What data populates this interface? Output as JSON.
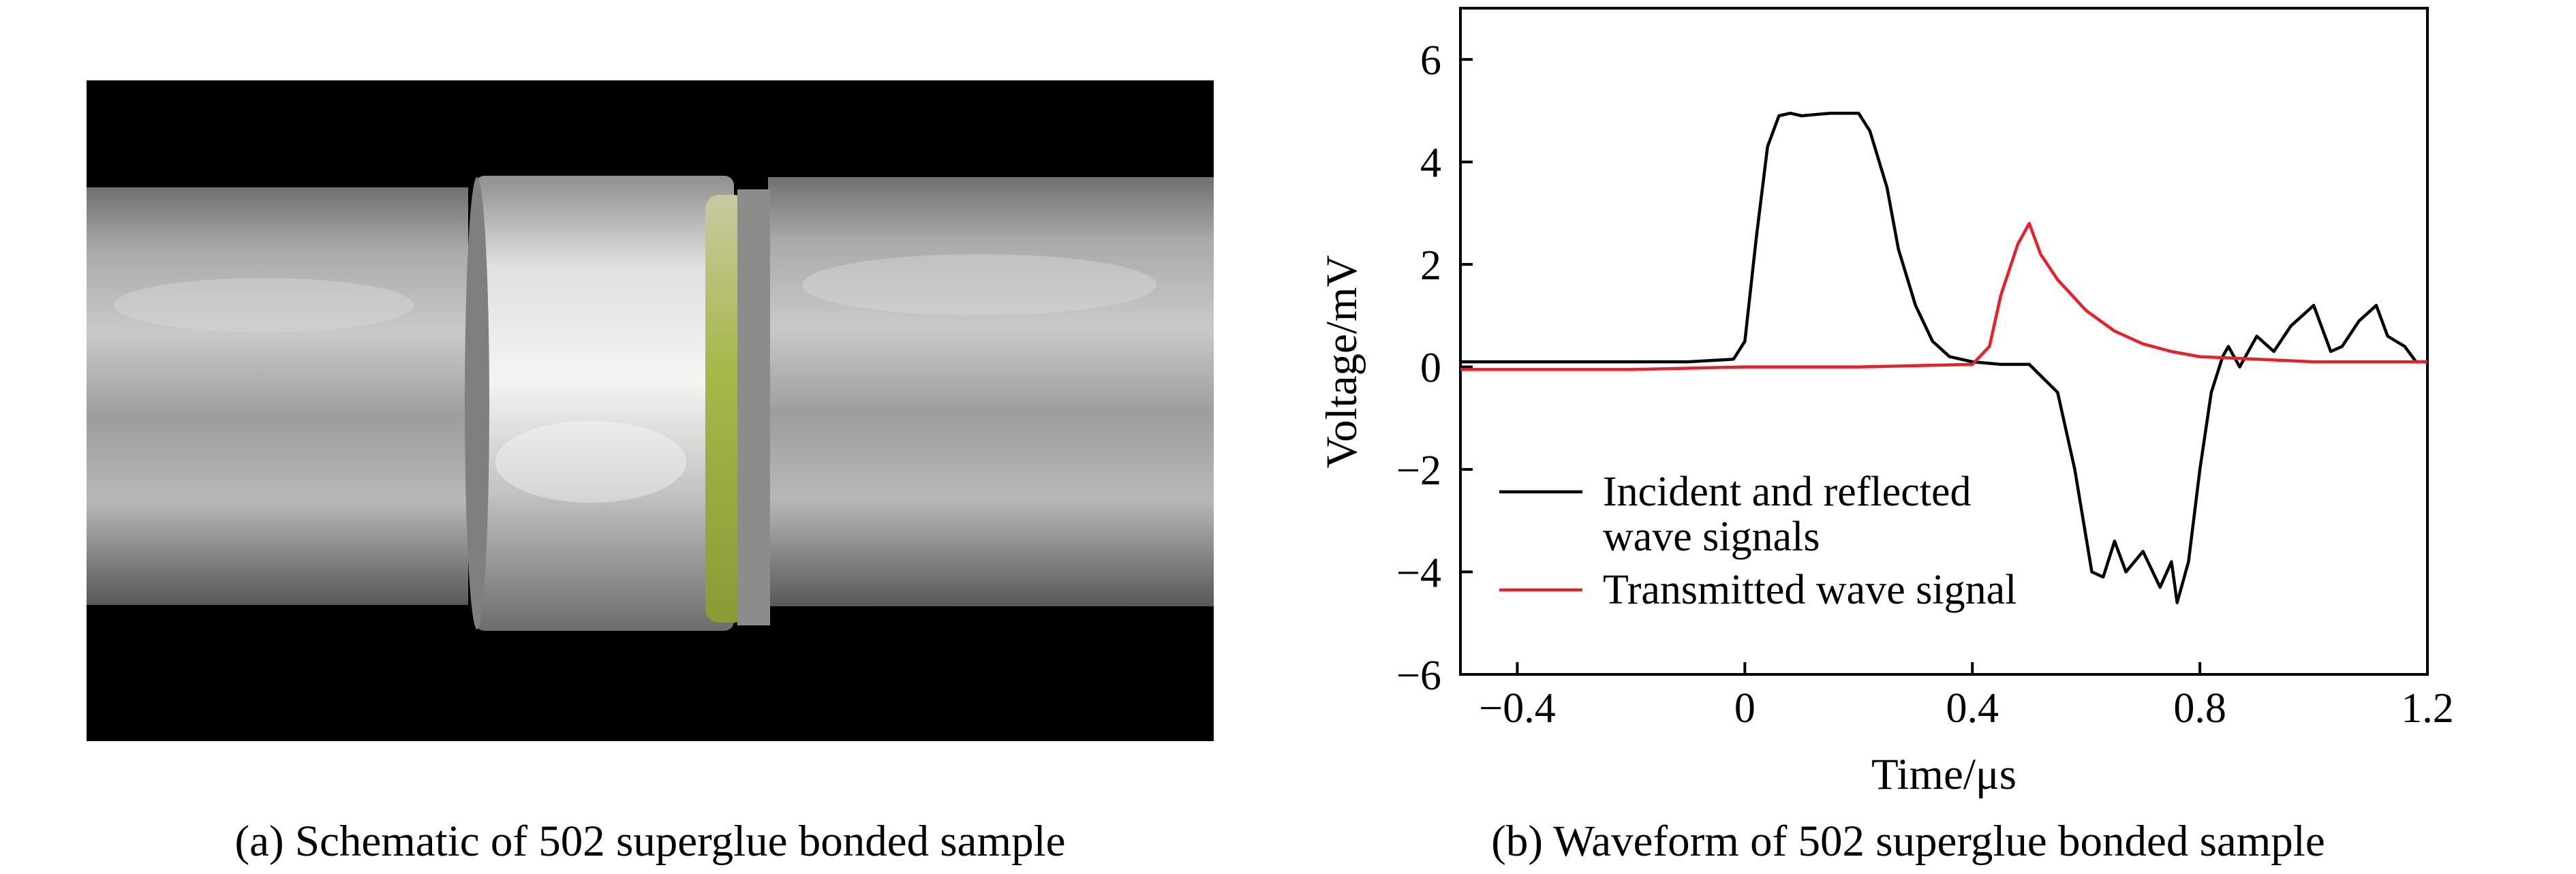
{
  "captions": {
    "a": "(a) Schematic of 502 superglue bonded sample",
    "b": "(b) Waveform of 502 superglue bonded sample"
  },
  "colors": {
    "incident": "#000000",
    "transmitted": "#e8202a",
    "glue": "#a8b84a"
  },
  "chart_data": {
    "type": "line",
    "xlabel": "Time/μs",
    "ylabel": "Voltage/mV",
    "xlim": [
      -0.5,
      1.2
    ],
    "ylim": [
      -6,
      7
    ],
    "xticks": [
      -0.4,
      0,
      0.4,
      0.8,
      1.2
    ],
    "xtick_labels": [
      "−0.4",
      "0",
      "0.4",
      "0.8",
      "1.2"
    ],
    "yticks": [
      -6,
      -4,
      -2,
      0,
      2,
      4,
      6
    ],
    "ytick_labels": [
      "−6",
      "−4",
      "−2",
      "0",
      "2",
      "4",
      "6"
    ],
    "grid": false,
    "legend_position": "lower-left",
    "series": [
      {
        "name": "Incident and reflected wave signals",
        "legend_lines": [
          "Incident and reflected",
          "wave signals"
        ],
        "x": [
          -0.5,
          -0.4,
          -0.3,
          -0.2,
          -0.1,
          -0.02,
          0.0,
          0.02,
          0.04,
          0.06,
          0.08,
          0.1,
          0.15,
          0.2,
          0.22,
          0.25,
          0.27,
          0.3,
          0.33,
          0.36,
          0.4,
          0.45,
          0.5,
          0.55,
          0.58,
          0.61,
          0.63,
          0.65,
          0.67,
          0.7,
          0.73,
          0.75,
          0.76,
          0.78,
          0.8,
          0.82,
          0.84,
          0.85,
          0.87,
          0.9,
          0.93,
          0.96,
          1.0,
          1.03,
          1.05,
          1.08,
          1.11,
          1.13,
          1.16,
          1.18,
          1.2
        ],
        "y": [
          0.1,
          0.1,
          0.1,
          0.1,
          0.1,
          0.15,
          0.5,
          2.5,
          4.3,
          4.9,
          4.95,
          4.9,
          4.95,
          4.95,
          4.6,
          3.5,
          2.3,
          1.2,
          0.5,
          0.2,
          0.1,
          0.05,
          0.05,
          -0.5,
          -2.0,
          -4.0,
          -4.1,
          -3.4,
          -4.0,
          -3.6,
          -4.3,
          -3.8,
          -4.6,
          -3.8,
          -2.0,
          -0.5,
          0.2,
          0.4,
          0.0,
          0.6,
          0.3,
          0.8,
          1.2,
          0.3,
          0.4,
          0.9,
          1.2,
          0.6,
          0.4,
          0.1,
          0.1
        ]
      },
      {
        "name": "Transmitted wave signal",
        "x": [
          -0.5,
          -0.2,
          0.0,
          0.2,
          0.4,
          0.43,
          0.45,
          0.48,
          0.5,
          0.52,
          0.55,
          0.6,
          0.65,
          0.7,
          0.75,
          0.8,
          0.9,
          1.0,
          1.1,
          1.2
        ],
        "y": [
          -0.05,
          -0.05,
          0.0,
          0.0,
          0.05,
          0.4,
          1.4,
          2.4,
          2.8,
          2.2,
          1.7,
          1.1,
          0.7,
          0.45,
          0.3,
          0.2,
          0.15,
          0.1,
          0.1,
          0.1
        ]
      }
    ]
  }
}
